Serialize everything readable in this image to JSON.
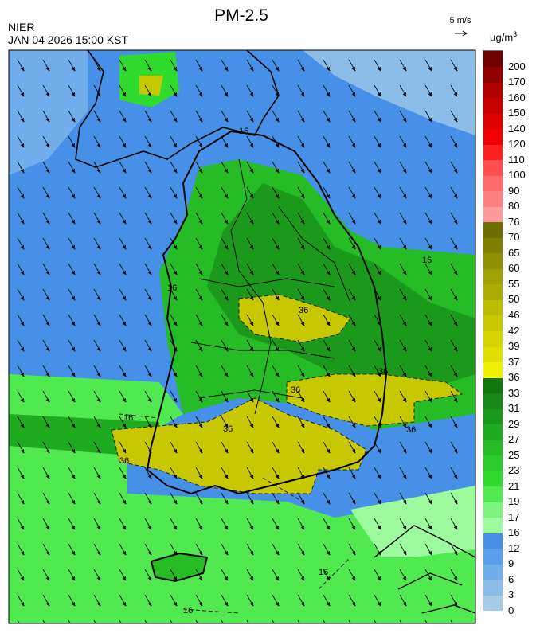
{
  "header": {
    "agency": "NIER",
    "datetime": "JAN 04 2026 15:00 KST",
    "title": "PM-2.5",
    "wind_reference": "5 m/s",
    "unit_base": "µg/m",
    "unit_exp": "3"
  },
  "colorbar": {
    "levels": [
      "0",
      "3",
      "6",
      "9",
      "12",
      "16",
      "17",
      "19",
      "21",
      "23",
      "25",
      "27",
      "29",
      "31",
      "33",
      "36",
      "37",
      "39",
      "42",
      "46",
      "50",
      "55",
      "60",
      "65",
      "70",
      "76",
      "80",
      "90",
      "100",
      "110",
      "120",
      "140",
      "150",
      "160",
      "170",
      "200"
    ],
    "colors": [
      "#a6cbe6",
      "#8cbce8",
      "#72adeb",
      "#5a9fec",
      "#4690e8",
      "#9cfb9c",
      "#7df27d",
      "#50ea50",
      "#2fdb2f",
      "#2acb2a",
      "#26bc26",
      "#1fab1f",
      "#1b991b",
      "#178817",
      "#117711",
      "#f0f000",
      "#e0e000",
      "#d4d400",
      "#c8c800",
      "#bcbc00",
      "#acac00",
      "#a0a000",
      "#909000",
      "#808000",
      "#6e6e00",
      "#ff9a9a",
      "#ff8080",
      "#ff6a6a",
      "#ff4f4f",
      "#ff2020",
      "#f00000",
      "#e00000",
      "#c80000",
      "#b00000",
      "#900000",
      "#700000"
    ]
  },
  "map": {
    "contour_labels": [
      "16",
      "16",
      "16",
      "16",
      "16",
      "16",
      "36",
      "36",
      "36",
      "36",
      "36",
      "36"
    ]
  }
}
